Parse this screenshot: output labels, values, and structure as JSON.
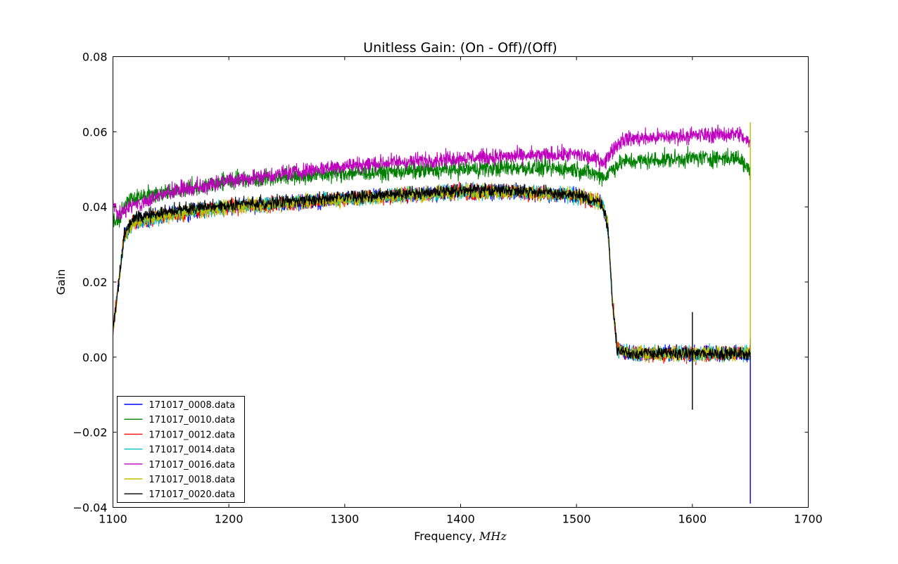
{
  "chart_data": {
    "type": "line",
    "title": "Unitless Gain: (On - Off)/(Off)",
    "xlabel_prefix": "Frequency, ",
    "xlabel_unit": "MHz",
    "ylabel": "Gain",
    "xlim": [
      1100,
      1700
    ],
    "ylim": [
      -0.04,
      0.08
    ],
    "x_ticks": [
      1100,
      1200,
      1300,
      1400,
      1500,
      1600,
      1700
    ],
    "x_tick_labels": [
      "1100",
      "1200",
      "1300",
      "1400",
      "1500",
      "1600",
      "1700"
    ],
    "y_ticks": [
      -0.04,
      -0.02,
      0.0,
      0.02,
      0.04,
      0.06,
      0.08
    ],
    "y_tick_labels": [
      "−0.04",
      "−0.02",
      "0.00",
      "0.02",
      "0.04",
      "0.06",
      "0.08"
    ],
    "grid": false,
    "legend_position": "lower-left",
    "x_range": [
      1100,
      1650
    ],
    "series": [
      {
        "name": "171017_0008.data",
        "color": "#0000ff",
        "noise": 0.0012,
        "points": [
          [
            1100,
            0.007
          ],
          [
            1105,
            0.02
          ],
          [
            1110,
            0.033
          ],
          [
            1118,
            0.036
          ],
          [
            1150,
            0.038
          ],
          [
            1200,
            0.04
          ],
          [
            1300,
            0.042
          ],
          [
            1400,
            0.044
          ],
          [
            1450,
            0.044
          ],
          [
            1500,
            0.043
          ],
          [
            1522,
            0.041
          ],
          [
            1527,
            0.035
          ],
          [
            1531,
            0.015
          ],
          [
            1535,
            0.002
          ],
          [
            1545,
            0.001
          ],
          [
            1600,
            0.001
          ],
          [
            1649,
            0.001
          ]
        ],
        "spikes": [
          [
            1650,
            -0.039,
            0.005
          ]
        ]
      },
      {
        "name": "171017_0010.data",
        "color": "#008000",
        "noise": 0.0014,
        "points": [
          [
            1100,
            0.037
          ],
          [
            1105,
            0.036
          ],
          [
            1112,
            0.042
          ],
          [
            1150,
            0.044
          ],
          [
            1200,
            0.047
          ],
          [
            1250,
            0.048
          ],
          [
            1300,
            0.049
          ],
          [
            1400,
            0.05
          ],
          [
            1450,
            0.0505
          ],
          [
            1500,
            0.05
          ],
          [
            1525,
            0.048
          ],
          [
            1530,
            0.05
          ],
          [
            1540,
            0.052
          ],
          [
            1600,
            0.053
          ],
          [
            1640,
            0.053
          ],
          [
            1649,
            0.05
          ]
        ],
        "spikes": []
      },
      {
        "name": "171017_0012.data",
        "color": "#ff0000",
        "noise": 0.0012,
        "points": [
          [
            1100,
            0.007
          ],
          [
            1105,
            0.02
          ],
          [
            1110,
            0.033
          ],
          [
            1118,
            0.036
          ],
          [
            1150,
            0.038
          ],
          [
            1200,
            0.04
          ],
          [
            1300,
            0.042
          ],
          [
            1400,
            0.044
          ],
          [
            1450,
            0.044
          ],
          [
            1500,
            0.043
          ],
          [
            1522,
            0.041
          ],
          [
            1527,
            0.035
          ],
          [
            1531,
            0.015
          ],
          [
            1535,
            0.002
          ],
          [
            1545,
            0.001
          ],
          [
            1600,
            0.0005
          ],
          [
            1649,
            0.001
          ]
        ],
        "spikes": []
      },
      {
        "name": "171017_0014.data",
        "color": "#00bfbf",
        "noise": 0.0012,
        "points": [
          [
            1100,
            0.007
          ],
          [
            1105,
            0.02
          ],
          [
            1110,
            0.033
          ],
          [
            1118,
            0.036
          ],
          [
            1150,
            0.038
          ],
          [
            1200,
            0.04
          ],
          [
            1300,
            0.042
          ],
          [
            1400,
            0.044
          ],
          [
            1450,
            0.044
          ],
          [
            1500,
            0.043
          ],
          [
            1522,
            0.041
          ],
          [
            1527,
            0.035
          ],
          [
            1531,
            0.015
          ],
          [
            1535,
            0.002
          ],
          [
            1545,
            0.001
          ],
          [
            1600,
            0.001
          ],
          [
            1649,
            0.001
          ]
        ],
        "spikes": []
      },
      {
        "name": "171017_0016.data",
        "color": "#bf00bf",
        "noise": 0.0013,
        "points": [
          [
            1100,
            0.041
          ],
          [
            1105,
            0.038
          ],
          [
            1115,
            0.04
          ],
          [
            1150,
            0.044
          ],
          [
            1200,
            0.047
          ],
          [
            1250,
            0.049
          ],
          [
            1300,
            0.051
          ],
          [
            1400,
            0.053
          ],
          [
            1450,
            0.0535
          ],
          [
            1500,
            0.054
          ],
          [
            1525,
            0.052
          ],
          [
            1530,
            0.055
          ],
          [
            1540,
            0.058
          ],
          [
            1600,
            0.059
          ],
          [
            1640,
            0.0595
          ],
          [
            1649,
            0.057
          ]
        ],
        "spikes": []
      },
      {
        "name": "171017_0018.data",
        "color": "#bfbf00",
        "noise": 0.0012,
        "points": [
          [
            1100,
            0.007
          ],
          [
            1105,
            0.02
          ],
          [
            1110,
            0.033
          ],
          [
            1118,
            0.036
          ],
          [
            1150,
            0.038
          ],
          [
            1200,
            0.04
          ],
          [
            1300,
            0.042
          ],
          [
            1400,
            0.044
          ],
          [
            1450,
            0.044
          ],
          [
            1500,
            0.043
          ],
          [
            1522,
            0.041
          ],
          [
            1527,
            0.035
          ],
          [
            1531,
            0.015
          ],
          [
            1535,
            0.002
          ],
          [
            1545,
            0.001
          ],
          [
            1600,
            0.001
          ],
          [
            1649,
            0.001
          ]
        ],
        "spikes": [
          [
            1650,
            0.0005,
            0.0625
          ]
        ]
      },
      {
        "name": "171017_0020.data",
        "color": "#000000",
        "noise": 0.001,
        "points": [
          [
            1100,
            0.007
          ],
          [
            1105,
            0.02
          ],
          [
            1110,
            0.033
          ],
          [
            1118,
            0.037
          ],
          [
            1150,
            0.039
          ],
          [
            1200,
            0.0405
          ],
          [
            1300,
            0.0425
          ],
          [
            1400,
            0.0445
          ],
          [
            1450,
            0.0445
          ],
          [
            1500,
            0.043
          ],
          [
            1522,
            0.041
          ],
          [
            1527,
            0.035
          ],
          [
            1531,
            0.015
          ],
          [
            1535,
            0.002
          ],
          [
            1545,
            0.001
          ],
          [
            1600,
            0.001
          ],
          [
            1649,
            0.001
          ]
        ],
        "spikes": [
          [
            1600,
            -0.014,
            0.012
          ]
        ]
      }
    ]
  }
}
